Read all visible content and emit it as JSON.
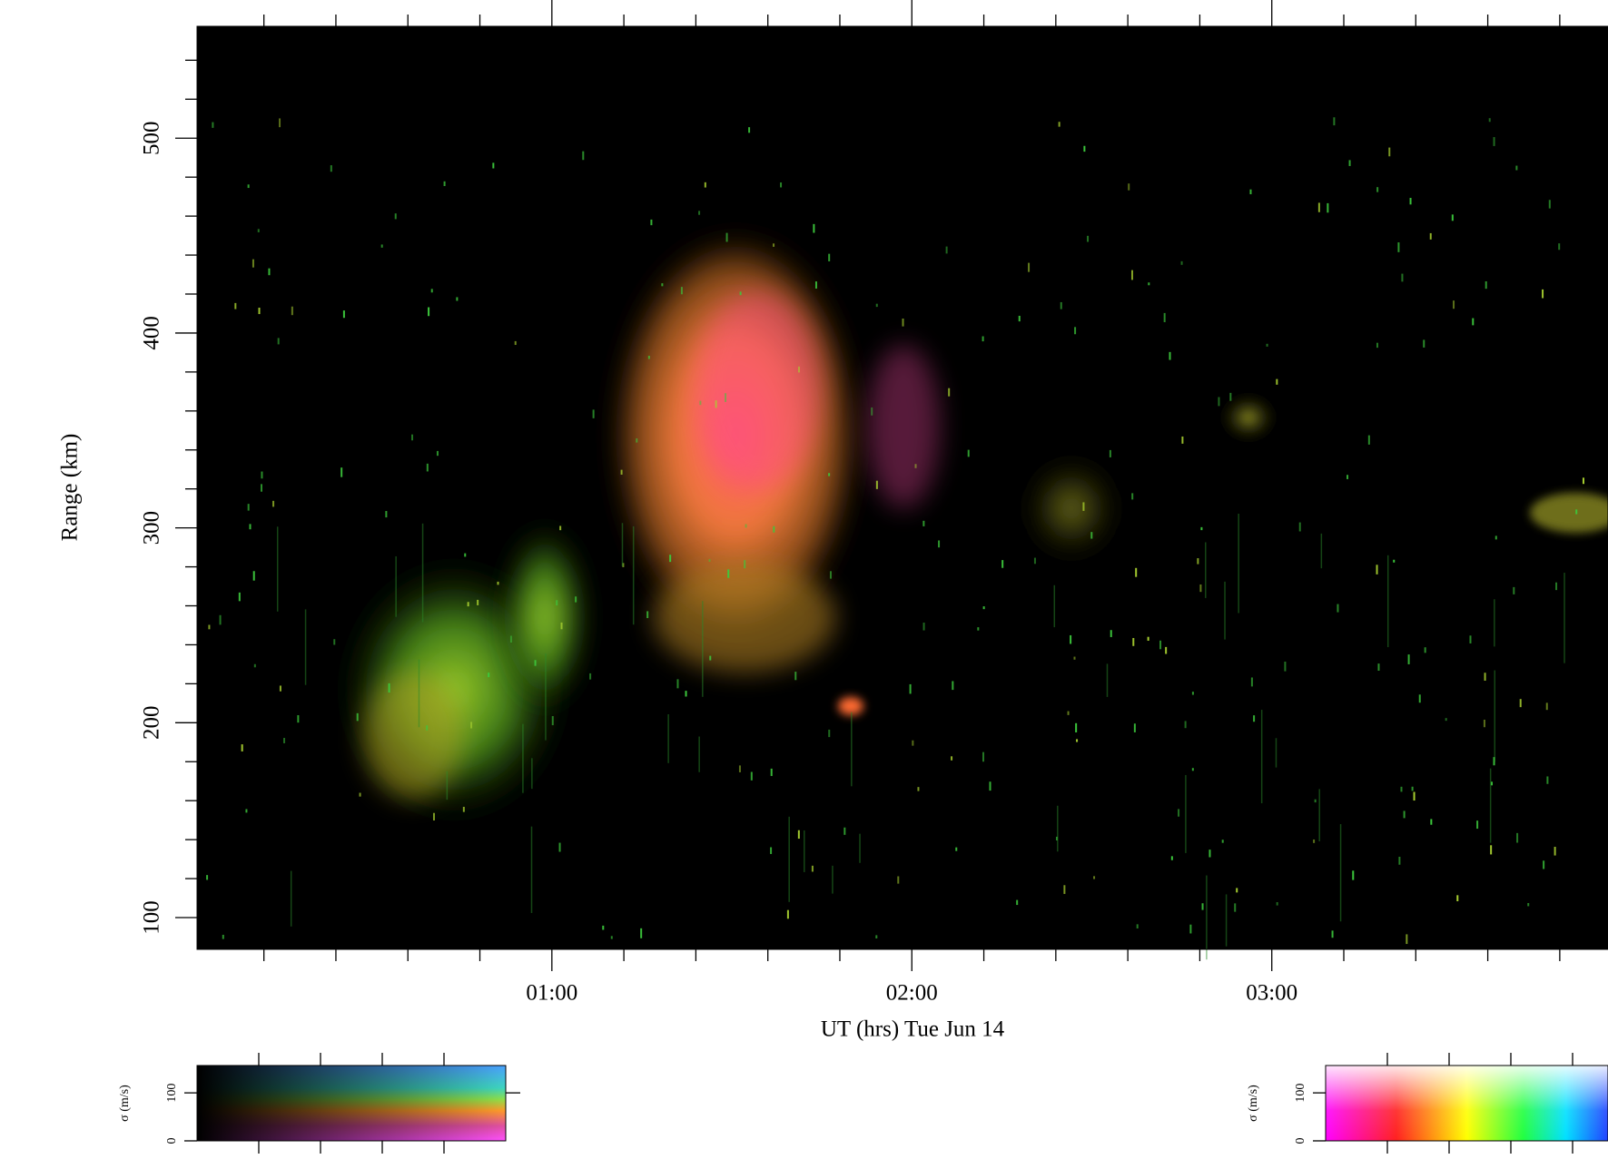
{
  "chart_data": {
    "type": "rti",
    "x_label": "UT (hrs) Tue Jun 14",
    "y_label": "Range (km)",
    "xlim": [
      0.0142,
      3.934
    ],
    "xticks": [
      {
        "value": 1,
        "label": "01:00"
      },
      {
        "value": 2,
        "label": "02:00"
      },
      {
        "value": 3,
        "label": "03:00"
      }
    ],
    "xminorticks": [
      0.2,
      0.4,
      0.6,
      0.8,
      1.2,
      1.4,
      1.6,
      1.8,
      2.2,
      2.4,
      2.6,
      2.8,
      3.2,
      3.4,
      3.6,
      3.8
    ],
    "ylim": [
      83.7,
      557.4
    ],
    "yticks": [
      100,
      200,
      300,
      400,
      500
    ],
    "yminorticks": [
      120,
      140,
      160,
      180,
      220,
      240,
      260,
      280,
      320,
      340,
      360,
      380,
      420,
      440,
      460,
      480,
      520,
      540
    ],
    "colorbars": [
      {
        "label": "σ (m/s)",
        "ylim": [
          0,
          157
        ],
        "yticks": [
          0,
          100
        ],
        "style": "dark"
      },
      {
        "label": "σ (m/s)",
        "ylim": [
          0,
          157
        ],
        "yticks": [
          0,
          100
        ],
        "style": "rainbow"
      }
    ]
  }
}
